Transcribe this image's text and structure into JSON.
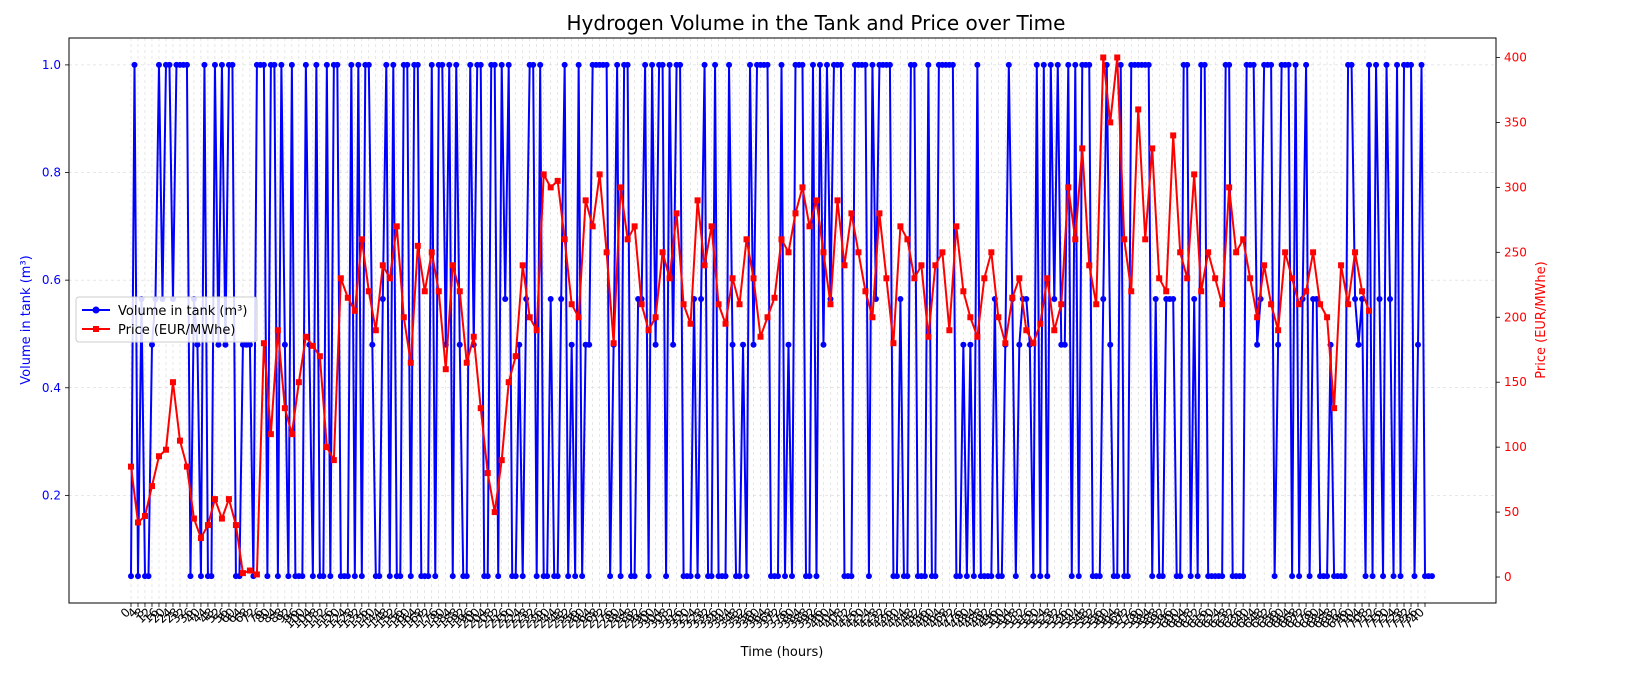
{
  "chart_data": {
    "type": "line",
    "title": "Hydrogen Volume in the Tank and Price over Time",
    "xlabel": "Time (hours)",
    "ylabel_left": "Volume in tank (m³)",
    "ylabel_right": "Price (EUR/MWhe)",
    "x_range": [
      0,
      744
    ],
    "ylim_left": [
      0.0,
      1.05
    ],
    "ylim_right": [
      -20,
      415
    ],
    "yticks_left": [
      0.2,
      0.4,
      0.6,
      0.8,
      1.0
    ],
    "yticks_right": [
      0,
      50,
      100,
      150,
      200,
      250,
      300,
      350,
      400
    ],
    "x_ticks_from": 0,
    "x_ticks_to": 740,
    "x_ticks_step": 4,
    "grid": true,
    "legend_position": "center-left",
    "colors": {
      "volume": "#0000ff",
      "price": "#ff0000",
      "grid": "#d0d0d0"
    },
    "series": [
      {
        "name": "Volume in tank (m³)",
        "axis": "left",
        "marker": "circle",
        "levels": [
          0.05,
          0.48,
          0.565,
          1.0
        ],
        "x_start": 0,
        "x_end": 744,
        "pattern": "alternating between empty (0.05) and full (1.0) with intermediate levels 0.48 and 0.565"
      },
      {
        "name": "Price (EUR/MWhe)",
        "axis": "right",
        "marker": "square",
        "points": [
          [
            0,
            85
          ],
          [
            4,
            42
          ],
          [
            8,
            47
          ],
          [
            12,
            70
          ],
          [
            16,
            93
          ],
          [
            20,
            98
          ],
          [
            24,
            150
          ],
          [
            28,
            105
          ],
          [
            32,
            85
          ],
          [
            36,
            45
          ],
          [
            40,
            30
          ],
          [
            44,
            40
          ],
          [
            48,
            60
          ],
          [
            52,
            45
          ],
          [
            56,
            60
          ],
          [
            60,
            40
          ],
          [
            64,
            3
          ],
          [
            68,
            5
          ],
          [
            72,
            2
          ],
          [
            76,
            180
          ],
          [
            80,
            110
          ],
          [
            84,
            190
          ],
          [
            88,
            130
          ],
          [
            92,
            110
          ],
          [
            96,
            150
          ],
          [
            100,
            185
          ],
          [
            104,
            178
          ],
          [
            108,
            170
          ],
          [
            112,
            100
          ],
          [
            116,
            90
          ],
          [
            120,
            230
          ],
          [
            124,
            215
          ],
          [
            128,
            205
          ],
          [
            132,
            260
          ],
          [
            136,
            220
          ],
          [
            140,
            190
          ],
          [
            144,
            240
          ],
          [
            148,
            230
          ],
          [
            152,
            270
          ],
          [
            156,
            200
          ],
          [
            160,
            165
          ],
          [
            164,
            255
          ],
          [
            168,
            220
          ],
          [
            172,
            250
          ],
          [
            176,
            220
          ],
          [
            180,
            160
          ],
          [
            184,
            240
          ],
          [
            188,
            220
          ],
          [
            192,
            165
          ],
          [
            196,
            185
          ],
          [
            200,
            130
          ],
          [
            204,
            80
          ],
          [
            208,
            50
          ],
          [
            212,
            90
          ],
          [
            216,
            150
          ],
          [
            220,
            170
          ],
          [
            224,
            240
          ],
          [
            228,
            200
          ],
          [
            232,
            190
          ],
          [
            236,
            310
          ],
          [
            240,
            300
          ],
          [
            244,
            305
          ],
          [
            248,
            260
          ],
          [
            252,
            210
          ],
          [
            256,
            200
          ],
          [
            260,
            290
          ],
          [
            264,
            270
          ],
          [
            268,
            310
          ],
          [
            272,
            250
          ],
          [
            276,
            180
          ],
          [
            280,
            300
          ],
          [
            284,
            260
          ],
          [
            288,
            270
          ],
          [
            292,
            210
          ],
          [
            296,
            190
          ],
          [
            300,
            200
          ],
          [
            304,
            250
          ],
          [
            308,
            230
          ],
          [
            312,
            280
          ],
          [
            316,
            210
          ],
          [
            320,
            195
          ],
          [
            324,
            290
          ],
          [
            328,
            240
          ],
          [
            332,
            270
          ],
          [
            336,
            210
          ],
          [
            340,
            195
          ],
          [
            344,
            230
          ],
          [
            348,
            210
          ],
          [
            352,
            260
          ],
          [
            356,
            230
          ],
          [
            360,
            185
          ],
          [
            364,
            200
          ],
          [
            368,
            215
          ],
          [
            372,
            260
          ],
          [
            376,
            250
          ],
          [
            380,
            280
          ],
          [
            384,
            300
          ],
          [
            388,
            270
          ],
          [
            392,
            290
          ],
          [
            396,
            250
          ],
          [
            400,
            210
          ],
          [
            404,
            290
          ],
          [
            408,
            240
          ],
          [
            412,
            280
          ],
          [
            416,
            250
          ],
          [
            420,
            220
          ],
          [
            424,
            200
          ],
          [
            428,
            280
          ],
          [
            432,
            230
          ],
          [
            436,
            180
          ],
          [
            440,
            270
          ],
          [
            444,
            260
          ],
          [
            448,
            230
          ],
          [
            452,
            240
          ],
          [
            456,
            185
          ],
          [
            460,
            240
          ],
          [
            464,
            250
          ],
          [
            468,
            190
          ],
          [
            472,
            270
          ],
          [
            476,
            220
          ],
          [
            480,
            200
          ],
          [
            484,
            185
          ],
          [
            488,
            230
          ],
          [
            492,
            250
          ],
          [
            496,
            200
          ],
          [
            500,
            180
          ],
          [
            504,
            215
          ],
          [
            508,
            230
          ],
          [
            512,
            190
          ],
          [
            516,
            180
          ],
          [
            520,
            195
          ],
          [
            524,
            230
          ],
          [
            528,
            190
          ],
          [
            532,
            210
          ],
          [
            536,
            300
          ],
          [
            540,
            260
          ],
          [
            544,
            330
          ],
          [
            548,
            240
          ],
          [
            552,
            210
          ],
          [
            556,
            400
          ],
          [
            560,
            350
          ],
          [
            564,
            400
          ],
          [
            568,
            260
          ],
          [
            572,
            220
          ],
          [
            576,
            360
          ],
          [
            580,
            260
          ],
          [
            584,
            330
          ],
          [
            588,
            230
          ],
          [
            592,
            220
          ],
          [
            596,
            340
          ],
          [
            600,
            250
          ],
          [
            604,
            230
          ],
          [
            608,
            310
          ],
          [
            612,
            220
          ],
          [
            616,
            250
          ],
          [
            620,
            230
          ],
          [
            624,
            210
          ],
          [
            628,
            300
          ],
          [
            632,
            250
          ],
          [
            636,
            260
          ],
          [
            640,
            230
          ],
          [
            644,
            200
          ],
          [
            648,
            240
          ],
          [
            652,
            210
          ],
          [
            656,
            190
          ],
          [
            660,
            250
          ],
          [
            664,
            230
          ],
          [
            668,
            210
          ],
          [
            672,
            220
          ],
          [
            676,
            250
          ],
          [
            680,
            210
          ],
          [
            684,
            200
          ],
          [
            688,
            130
          ],
          [
            692,
            240
          ],
          [
            696,
            210
          ],
          [
            700,
            250
          ],
          [
            704,
            220
          ],
          [
            708,
            205
          ]
        ]
      }
    ]
  }
}
